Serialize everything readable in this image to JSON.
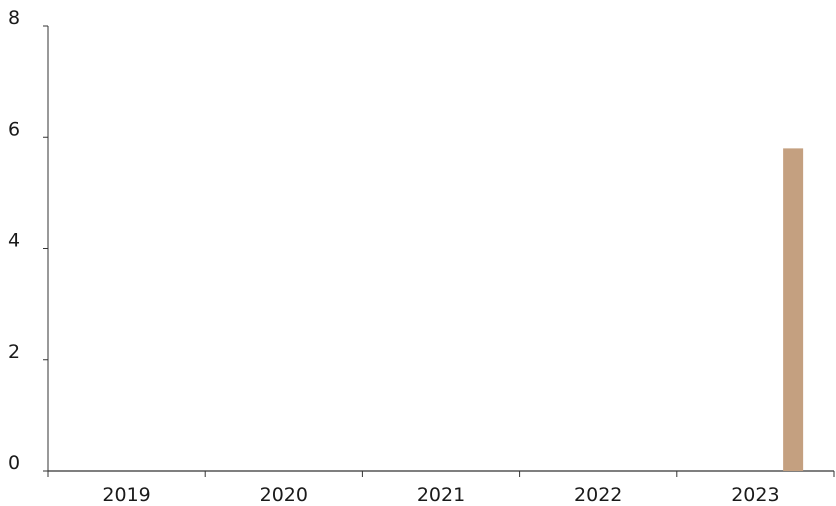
{
  "chart_data": {
    "type": "bar",
    "categories": [
      "2019",
      "2020",
      "2021",
      "2022",
      "2023"
    ],
    "values": [
      0,
      0,
      0,
      0,
      5.8
    ],
    "title": "",
    "xlabel": "",
    "ylabel": "",
    "ylim": [
      0,
      8
    ],
    "yticks": [
      "0",
      "2",
      "4",
      "6",
      "8"
    ],
    "grid": false,
    "legend": "none",
    "colors": {
      "bar": "#C4A080",
      "axis": "#333333",
      "text": "#1a1a1a"
    }
  }
}
